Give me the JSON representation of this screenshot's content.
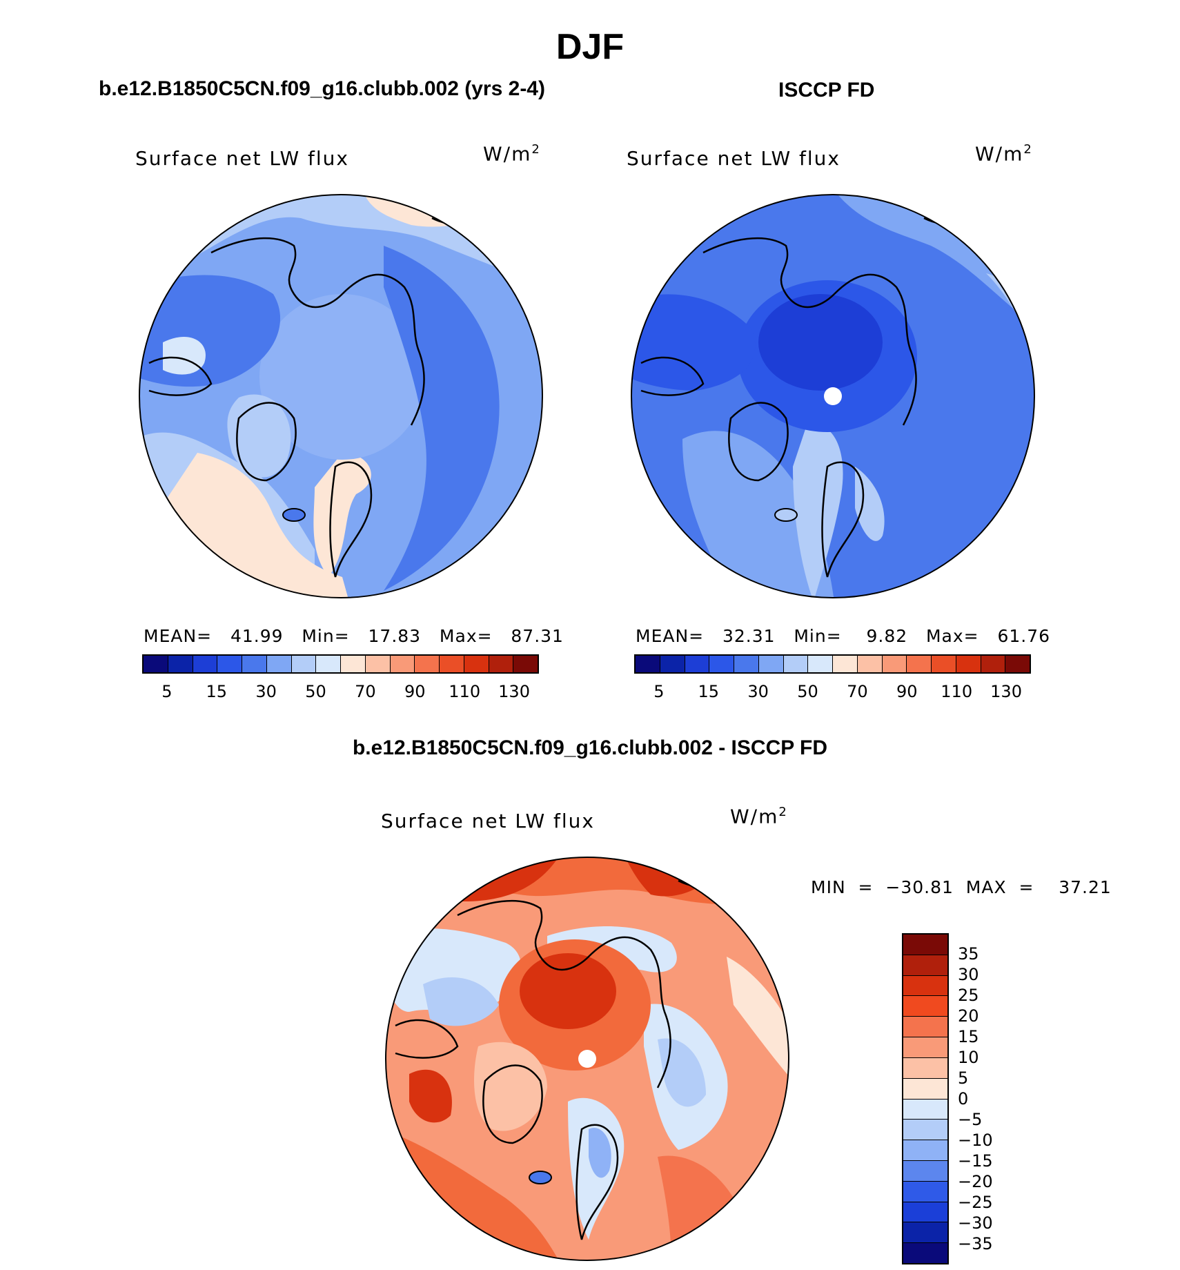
{
  "figure": {
    "title": "DJF",
    "units": "W/m",
    "units_exp": "2",
    "variable": "Surface net LW flux"
  },
  "panels": [
    {
      "id": "model",
      "title": "b.e12.B1850C5CN.f09_g16.clubb.002 (yrs 2-4)",
      "stats_text": "MEAN=   41.99   Min=   17.83   Max=   87.31",
      "base_color": "#7fa7f4"
    },
    {
      "id": "obs",
      "title": "ISCCP FD",
      "stats_text": "MEAN=   32.31   Min=    9.82   Max=   61.76",
      "base_color": "#4a78ec"
    },
    {
      "id": "diff",
      "title": "b.e12.B1850C5CN.f09_g16.clubb.002 - ISCCP FD",
      "stats_text": "MIN  =  −30.81  MAX  =    37.21",
      "base_color": "#f26a3c"
    }
  ],
  "chart_data": [
    {
      "type": "heatmap",
      "name": "model-map",
      "projection": "north polar stereographic",
      "title": "b.e12.B1850C5CN.f09_g16.clubb.002 (yrs 2-4)",
      "variable": "Surface net LW flux",
      "units": "W/m2",
      "mean": 41.99,
      "min": 17.83,
      "max": 87.31,
      "colorbar": {
        "levels": [
          5,
          10,
          15,
          20,
          30,
          40,
          50,
          60,
          70,
          80,
          90,
          100,
          110,
          120,
          130
        ],
        "tick_labels": [
          "5",
          "15",
          "30",
          "50",
          "70",
          "90",
          "110",
          "130"
        ],
        "colors": [
          "#0a0a7a",
          "#0b23a8",
          "#1d3ed6",
          "#2c57e8",
          "#4a78ec",
          "#7fa7f4",
          "#b3cdf8",
          "#d8e8fb",
          "#fde6d6",
          "#fcc1a6",
          "#f99a78",
          "#f4734d",
          "#ea4f27",
          "#d8320f",
          "#b0200c",
          "#7a0a06"
        ]
      }
    },
    {
      "type": "heatmap",
      "name": "obs-map",
      "projection": "north polar stereographic",
      "title": "ISCCP FD",
      "variable": "Surface net LW flux",
      "units": "W/m2",
      "mean": 32.31,
      "min": 9.82,
      "max": 61.76,
      "colorbar": {
        "levels": [
          5,
          10,
          15,
          20,
          30,
          40,
          50,
          60,
          70,
          80,
          90,
          100,
          110,
          120,
          130
        ],
        "tick_labels": [
          "5",
          "15",
          "30",
          "50",
          "70",
          "90",
          "110",
          "130"
        ],
        "colors": [
          "#0a0a7a",
          "#0b23a8",
          "#1d3ed6",
          "#2c57e8",
          "#4a78ec",
          "#7fa7f4",
          "#b3cdf8",
          "#d8e8fb",
          "#fde6d6",
          "#fcc1a6",
          "#f99a78",
          "#f4734d",
          "#ea4f27",
          "#d8320f",
          "#b0200c",
          "#7a0a06"
        ]
      }
    },
    {
      "type": "heatmap",
      "name": "diff-map",
      "projection": "north polar stereographic",
      "title": "b.e12.B1850C5CN.f09_g16.clubb.002 - ISCCP FD",
      "variable": "Surface net LW flux",
      "units": "W/m2",
      "min": -30.81,
      "max": 37.21,
      "colorbar": {
        "orientation": "vertical",
        "tick_labels": [
          "35",
          "30",
          "25",
          "20",
          "15",
          "10",
          "5",
          "0",
          "−5",
          "−10",
          "−15",
          "−20",
          "−25",
          "−30",
          "−35"
        ],
        "colors": [
          "#7a0a06",
          "#b0200c",
          "#d8320f",
          "#f04a1f",
          "#f4734d",
          "#f99a78",
          "#fcc1a6",
          "#fde6d6",
          "#d8e8fb",
          "#b3cdf8",
          "#8fb2f6",
          "#5c86ee",
          "#2f5ae8",
          "#1b3fd8",
          "#0b23a8",
          "#0a0a7a"
        ]
      }
    }
  ]
}
